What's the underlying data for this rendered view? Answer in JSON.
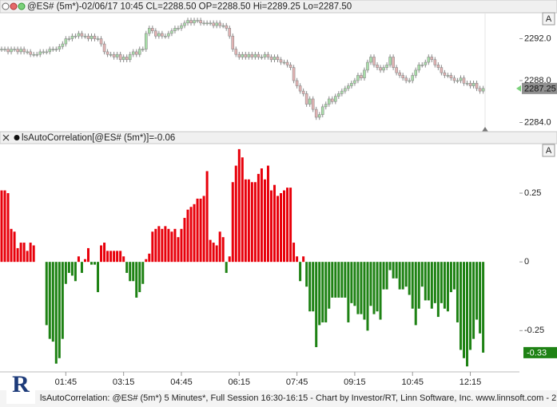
{
  "chart_data": [
    {
      "type": "candlestick",
      "title": "@ES# (5m*)-02/06/17 10:45 CL=2288.50 OP=2288.50 Hi=2289.25 Lo=2287.50",
      "scale_button": "A",
      "up_color": "#a9dfa9",
      "down_color": "#e4b4b4",
      "xlim": [
        -0.5,
        161.3
      ],
      "ylim": [
        2283.2,
        2294.4
      ],
      "yticks": [
        {
          "value": 2292,
          "label": "2292.0"
        },
        {
          "value": 2288,
          "label": "2288.0"
        },
        {
          "value": 2284,
          "label": "2284.0"
        }
      ],
      "open": [
        2291.0,
        2291.0,
        2291.0,
        2290.75,
        2291.0,
        2291.0,
        2290.75,
        2291.0,
        2290.75,
        2290.75,
        2290.5,
        2290.5,
        2290.5,
        2290.75,
        2290.75,
        2290.75,
        2291.0,
        2291.0,
        2291.0,
        2291.25,
        2291.5,
        2292.0,
        2292.0,
        2292.25,
        2292.25,
        2292.5,
        2292.25,
        2292.25,
        2292.0,
        2292.25,
        2292.0,
        2292.0,
        2291.5,
        2290.75,
        2290.5,
        2290.5,
        2290.25,
        2290.5,
        2290.0,
        2290.25,
        2290.0,
        2290.5,
        2290.75,
        2290.5,
        2291.0,
        2291.0,
        2292.5,
        2293.0,
        2292.75,
        2292.25,
        2292.5,
        2292.25,
        2292.25,
        2292.5,
        2292.75,
        2293.0,
        2293.0,
        2293.25,
        2293.5,
        2293.75,
        2293.5,
        2293.75,
        2293.75,
        2293.5,
        2293.5,
        2293.5,
        2293.5,
        2293.25,
        2293.5,
        2293.25,
        2293.25,
        2293.0,
        2292.25,
        2291.0,
        2290.5,
        2290.25,
        2290.5,
        2290.25,
        2290.5,
        2290.25,
        2290.5,
        2290.25,
        2290.25,
        2290.5,
        2290.25,
        2290.0,
        2290.25,
        2290.0,
        2289.75,
        2289.75,
        2289.5,
        2289.25,
        2288.0,
        2287.5,
        2287.0,
        2286.75,
        2285.75,
        2286.25,
        2285.25,
        2284.5,
        2284.75,
        2285.5,
        2285.75,
        2286.25,
        2286.0,
        2286.5,
        2286.75,
        2287.0,
        2287.25,
        2287.5,
        2287.75,
        2288.0,
        2288.5,
        2288.25,
        2289.0,
        2289.75,
        2290.25,
        2289.5,
        2289.25,
        2289.0,
        2289.25,
        2289.5,
        2290.25,
        2289.25,
        2288.75,
        2288.5,
        2288.25,
        2288.0,
        2288.0,
        2288.5,
        2289.0,
        2289.5,
        2289.5,
        2289.75,
        2290.25,
        2290.0,
        2289.5,
        2289.25,
        2288.75,
        2288.5,
        2288.5,
        2288.25,
        2288.0,
        2288.0,
        2288.25,
        2287.75,
        2287.75,
        2287.5,
        2287.75,
        2287.25,
        2287.0
      ],
      "high": [
        2291.25,
        2291.25,
        2291.25,
        2291.25,
        2291.25,
        2291.25,
        2291.25,
        2291.25,
        2291.0,
        2291.0,
        2290.75,
        2290.75,
        2291.0,
        2291.0,
        2291.0,
        2291.25,
        2291.25,
        2291.25,
        2291.5,
        2291.75,
        2292.25,
        2292.25,
        2292.5,
        2292.5,
        2292.75,
        2292.75,
        2292.5,
        2292.5,
        2292.5,
        2292.5,
        2292.25,
        2292.25,
        2291.75,
        2291.0,
        2290.75,
        2290.75,
        2290.75,
        2290.75,
        2290.5,
        2290.5,
        2290.75,
        2291.0,
        2291.0,
        2291.25,
        2291.25,
        2292.75,
        2293.25,
        2293.25,
        2293.0,
        2292.75,
        2292.75,
        2292.5,
        2292.75,
        2293.0,
        2293.25,
        2293.25,
        2293.5,
        2293.75,
        2294.0,
        2294.0,
        2294.0,
        2294.0,
        2294.0,
        2293.75,
        2293.75,
        2293.75,
        2293.75,
        2293.75,
        2293.75,
        2293.5,
        2293.5,
        2293.25,
        2292.5,
        2291.25,
        2290.75,
        2290.75,
        2290.75,
        2290.75,
        2290.75,
        2290.75,
        2290.75,
        2290.5,
        2290.75,
        2290.75,
        2290.5,
        2290.5,
        2290.5,
        2290.25,
        2290.0,
        2290.0,
        2289.75,
        2289.5,
        2288.25,
        2287.75,
        2287.25,
        2287.0,
        2286.5,
        2286.5,
        2285.5,
        2285.0,
        2285.75,
        2286.0,
        2286.5,
        2286.5,
        2286.75,
        2287.0,
        2287.25,
        2287.5,
        2287.75,
        2288.0,
        2288.25,
        2288.75,
        2288.75,
        2289.25,
        2290.0,
        2290.5,
        2290.5,
        2289.75,
        2289.5,
        2289.5,
        2289.75,
        2290.5,
        2290.5,
        2289.5,
        2289.0,
        2288.75,
        2288.5,
        2288.25,
        2288.75,
        2289.25,
        2289.75,
        2289.75,
        2290.0,
        2290.5,
        2290.5,
        2290.25,
        2289.75,
        2289.5,
        2289.0,
        2288.75,
        2288.75,
        2288.5,
        2288.25,
        2288.5,
        2288.5,
        2288.0,
        2288.0,
        2288.0,
        2288.0,
        2287.5,
        2287.5
      ],
      "low": [
        2290.75,
        2290.75,
        2290.5,
        2290.5,
        2290.75,
        2290.5,
        2290.5,
        2290.5,
        2290.5,
        2290.25,
        2290.25,
        2290.25,
        2290.25,
        2290.5,
        2290.5,
        2290.5,
        2290.75,
        2290.75,
        2290.75,
        2291.0,
        2291.25,
        2291.75,
        2291.75,
        2292.0,
        2292.0,
        2292.0,
        2292.0,
        2291.75,
        2291.75,
        2291.75,
        2291.75,
        2291.25,
        2290.5,
        2290.25,
        2290.25,
        2290.0,
        2290.0,
        2289.75,
        2289.75,
        2289.75,
        2289.75,
        2290.25,
        2290.25,
        2290.25,
        2290.75,
        2290.75,
        2292.25,
        2292.5,
        2292.0,
        2292.0,
        2292.0,
        2292.0,
        2292.0,
        2292.25,
        2292.5,
        2292.75,
        2292.75,
        2293.0,
        2293.25,
        2293.25,
        2293.25,
        2293.5,
        2293.25,
        2293.25,
        2293.25,
        2293.25,
        2293.0,
        2293.0,
        2293.0,
        2293.0,
        2292.75,
        2292.0,
        2290.75,
        2290.25,
        2290.0,
        2290.0,
        2290.0,
        2290.0,
        2290.0,
        2290.0,
        2290.0,
        2290.0,
        2290.0,
        2290.0,
        2289.75,
        2289.75,
        2289.75,
        2289.5,
        2289.5,
        2289.25,
        2289.0,
        2287.75,
        2287.25,
        2286.75,
        2286.5,
        2285.5,
        2285.5,
        2285.0,
        2284.25,
        2284.25,
        2284.5,
        2285.25,
        2285.5,
        2285.75,
        2285.75,
        2286.25,
        2286.5,
        2286.75,
        2287.0,
        2287.25,
        2287.5,
        2287.75,
        2288.0,
        2288.0,
        2288.75,
        2289.5,
        2289.25,
        2289.0,
        2288.75,
        2288.75,
        2289.0,
        2289.25,
        2289.0,
        2288.5,
        2288.25,
        2288.0,
        2287.75,
        2287.75,
        2287.75,
        2288.25,
        2288.75,
        2289.25,
        2289.25,
        2289.5,
        2289.75,
        2289.25,
        2289.0,
        2288.5,
        2288.25,
        2288.25,
        2288.0,
        2287.75,
        2287.75,
        2287.75,
        2287.5,
        2287.5,
        2287.25,
        2287.25,
        2287.0,
        2286.75,
        2286.75
      ],
      "close": [
        2291.0,
        2291.0,
        2290.75,
        2291.0,
        2291.0,
        2290.75,
        2291.0,
        2290.75,
        2290.75,
        2290.5,
        2290.5,
        2290.5,
        2290.75,
        2290.75,
        2290.75,
        2291.0,
        2291.0,
        2291.0,
        2291.25,
        2291.5,
        2292.0,
        2292.0,
        2292.25,
        2292.25,
        2292.5,
        2292.25,
        2292.25,
        2292.0,
        2292.25,
        2292.0,
        2292.0,
        2291.5,
        2290.75,
        2290.5,
        2290.5,
        2290.25,
        2290.5,
        2290.0,
        2290.25,
        2290.0,
        2290.5,
        2290.75,
        2290.5,
        2291.0,
        2291.0,
        2292.5,
        2293.0,
        2292.75,
        2292.25,
        2292.5,
        2292.25,
        2292.25,
        2292.5,
        2292.75,
        2293.0,
        2293.0,
        2293.25,
        2293.5,
        2293.75,
        2293.5,
        2293.75,
        2293.75,
        2293.5,
        2293.5,
        2293.5,
        2293.5,
        2293.25,
        2293.5,
        2293.25,
        2293.25,
        2293.0,
        2292.25,
        2291.0,
        2290.5,
        2290.25,
        2290.5,
        2290.25,
        2290.5,
        2290.25,
        2290.5,
        2290.25,
        2290.25,
        2290.5,
        2290.25,
        2290.0,
        2290.25,
        2290.0,
        2289.75,
        2289.75,
        2289.5,
        2289.25,
        2288.0,
        2287.5,
        2287.0,
        2286.75,
        2285.75,
        2286.25,
        2285.25,
        2284.5,
        2284.75,
        2285.5,
        2285.75,
        2286.25,
        2286.0,
        2286.5,
        2286.75,
        2287.0,
        2287.25,
        2287.5,
        2287.75,
        2288.0,
        2288.5,
        2288.25,
        2289.0,
        2289.75,
        2290.25,
        2289.5,
        2289.25,
        2289.0,
        2289.25,
        2289.5,
        2290.25,
        2289.25,
        2288.75,
        2288.5,
        2288.25,
        2288.0,
        2288.0,
        2288.5,
        2289.0,
        2289.5,
        2289.5,
        2289.75,
        2290.25,
        2290.0,
        2289.5,
        2289.25,
        2288.75,
        2288.5,
        2288.5,
        2288.25,
        2288.0,
        2288.0,
        2288.25,
        2287.75,
        2287.75,
        2287.5,
        2287.75,
        2287.25,
        2287.0,
        2287.25
      ]
    },
    {
      "type": "bar",
      "title": "lsAutoCorrelation[@ES# (5m*)]=-0.06",
      "scale_button": "A",
      "up_color": "#e8000b",
      "down_color": "#1e8214",
      "xlim": [
        -0.5,
        161.3
      ],
      "ylim": [
        -0.4,
        0.43
      ],
      "yticks": [
        0.25,
        0,
        -0.25
      ],
      "xticks": [
        {
          "value": 20,
          "label": "01:45"
        },
        {
          "value": 38,
          "label": "03:15"
        },
        {
          "value": 56,
          "label": "04:45"
        },
        {
          "value": 74,
          "label": "06:15"
        },
        {
          "value": 92,
          "label": "07:45"
        },
        {
          "value": 110,
          "label": "09:15"
        },
        {
          "value": 128,
          "label": "10:45"
        },
        {
          "value": 146,
          "label": "12:15"
        }
      ],
      "values": [
        0.26,
        0.26,
        0.25,
        0.12,
        0.11,
        0.05,
        0.07,
        0.07,
        0.04,
        0.07,
        0.06,
        0,
        0,
        0,
        -0.23,
        -0.28,
        -0.29,
        -0.37,
        -0.35,
        -0.28,
        -0.08,
        -0.04,
        -0.05,
        -0.07,
        0.02,
        -0.04,
        0.01,
        0.05,
        -0.01,
        -0.01,
        -0.11,
        0.06,
        0.07,
        0.04,
        0.04,
        0.04,
        0.04,
        0.04,
        0.02,
        -0.04,
        -0.07,
        -0.07,
        -0.13,
        -0.11,
        -0.08,
        0.01,
        0.03,
        0.11,
        0.12,
        0.13,
        0.12,
        0.13,
        0.12,
        0.11,
        0.12,
        0.09,
        0.12,
        0.16,
        0.19,
        0.2,
        0.21,
        0.23,
        0.23,
        0.24,
        0.33,
        0.08,
        0.07,
        0.06,
        0.11,
        0.09,
        -0.04,
        0.02,
        0.29,
        0.35,
        0.41,
        0.38,
        0.3,
        0.3,
        0.29,
        0.29,
        0.32,
        0.34,
        0.3,
        0.35,
        0.26,
        0.28,
        0.24,
        0.25,
        0.26,
        0.27,
        0.27,
        0.07,
        0.02,
        -0.07,
        0.02,
        -0.09,
        -0.18,
        -0.18,
        -0.31,
        -0.23,
        -0.22,
        -0.22,
        -0.17,
        -0.13,
        -0.13,
        -0.13,
        -0.13,
        -0.13,
        -0.22,
        -0.15,
        -0.16,
        -0.19,
        -0.19,
        -0.21,
        -0.25,
        -0.16,
        -0.19,
        -0.18,
        -0.21,
        -0.1,
        -0.1,
        -0.03,
        -0.06,
        -0.06,
        -0.1,
        -0.1,
        -0.09,
        -0.12,
        -0.17,
        -0.23,
        -0.17,
        -0.09,
        -0.14,
        -0.14,
        -0.17,
        -0.15,
        -0.2,
        -0.15,
        -0.17,
        -0.18,
        -0.11,
        -0.1,
        -0.22,
        -0.32,
        -0.35,
        -0.38,
        -0.32,
        -0.28,
        -0.21,
        -0.26,
        -0.33
      ]
    }
  ],
  "logo_text": "R",
  "footer": "lsAutoCorrelation: @ES# (5m*) 5 Minutes*, Full Session 16:30-16:15 - Chart by Investor/RT, Linn Software, Inc. www.linnsoft.com - 2"
}
